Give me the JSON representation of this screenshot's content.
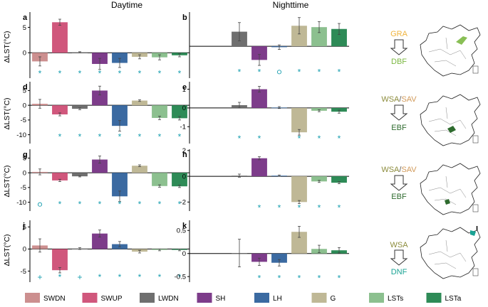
{
  "figure": {
    "column_titles": {
      "day": "Daytime",
      "night": "Nighttime"
    },
    "ylabel": "ΔLST(°C)",
    "colors": {
      "SWDN": "#cc8f8f",
      "SWUP": "#d0577c",
      "LWDN": "#6f6f6f",
      "SH": "#7d3c8a",
      "LH": "#3b6aa1",
      "G": "#bfb896",
      "LSTs": "#8cc08f",
      "LSTa": "#2e8b57"
    },
    "marker_color": "#1a9fb0",
    "axis_color": "#000000",
    "error_color": "#444444"
  },
  "legend": [
    {
      "key": "SWDN",
      "label": "SWDN"
    },
    {
      "key": "SWUP",
      "label": "SWUP"
    },
    {
      "key": "LWDN",
      "label": "LWDN"
    },
    {
      "key": "SH",
      "label": "SH"
    },
    {
      "key": "LH",
      "label": "LH"
    },
    {
      "key": "G",
      "label": "G"
    },
    {
      "key": "LSTs",
      "label": "LSTs"
    },
    {
      "key": "LSTa",
      "label": "LSTa"
    }
  ],
  "covers": [
    {
      "panel": "c",
      "from": [
        {
          "text": "GRA",
          "color": "#f0b43c"
        }
      ],
      "to": {
        "text": "DBF",
        "color": "#7cb842"
      }
    },
    {
      "panel": "f",
      "from": [
        {
          "text": "WSA",
          "color": "#8c8c3c"
        },
        {
          "text": "/",
          "color": "#555555"
        },
        {
          "text": "SAV",
          "color": "#d19a5a"
        }
      ],
      "to": {
        "text": "EBF",
        "color": "#2e6b2e"
      }
    },
    {
      "panel": "i",
      "from": [
        {
          "text": "WSA",
          "color": "#8c8c3c"
        },
        {
          "text": "/",
          "color": "#555555"
        },
        {
          "text": "SAV",
          "color": "#d19a5a"
        }
      ],
      "to": {
        "text": "EBF",
        "color": "#2e6b2e"
      }
    },
    {
      "panel": "l",
      "from": [
        {
          "text": "WSA",
          "color": "#8c8c3c"
        }
      ],
      "to": {
        "text": "DNF",
        "color": "#1aa394"
      }
    }
  ],
  "chart_data": [
    {
      "panel": "a",
      "column": "Daytime",
      "type": "bar",
      "ylabel": "ΔLST(°C)",
      "categories": [
        "SWDN",
        "SWUP",
        "LWDN",
        "SH",
        "LH",
        "G",
        "LSTs",
        "LSTa"
      ],
      "values": [
        -1.7,
        6.0,
        0.1,
        -2.2,
        -2.0,
        -0.8,
        -0.9,
        -0.5
      ],
      "errors": [
        0.9,
        0.6,
        0.1,
        1.1,
        0.9,
        0.4,
        0.5,
        0.3
      ],
      "ylim": [
        -5,
        8
      ],
      "yticks": [
        0,
        5
      ],
      "markers": [
        "*",
        "*",
        "*",
        "*",
        "*",
        "*",
        "*",
        "*"
      ],
      "markers_at": -4.2
    },
    {
      "panel": "b",
      "column": "Nighttime",
      "type": "bar",
      "ylabel": "",
      "categories": [
        "SWDN",
        "SWUP",
        "LWDN",
        "SH",
        "LH",
        "G",
        "LSTs",
        "LSTa"
      ],
      "values": [
        0,
        0,
        0.32,
        -0.3,
        -0.02,
        0.45,
        0.42,
        0.38
      ],
      "errors": [
        0,
        0,
        0.2,
        0.12,
        0.05,
        0.18,
        0.12,
        0.12
      ],
      "ylim": [
        -0.7,
        0.75
      ],
      "yticks": [],
      "markers": [
        "",
        "",
        "*",
        "*",
        "o",
        "*",
        "*",
        "*"
      ],
      "markers_at": -0.58
    },
    {
      "panel": "d",
      "column": "Daytime",
      "type": "bar",
      "ylabel": "ΔLST(°C)",
      "categories": [
        "SWDN",
        "SWUP",
        "LWDN",
        "SH",
        "LH",
        "G",
        "LSTs",
        "LSTa"
      ],
      "values": [
        0.5,
        -3.1,
        -1.2,
        5.0,
        -7.0,
        1.6,
        -4.3,
        -4.4
      ],
      "errors": [
        1.5,
        0.5,
        0.3,
        1.5,
        1.8,
        0.3,
        0.6,
        0.6
      ],
      "ylim": [
        -13,
        8
      ],
      "yticks": [
        5,
        0,
        -5,
        -10
      ],
      "markers": [
        "",
        "*",
        "*",
        "*",
        "*",
        "*",
        "*",
        "*"
      ],
      "markers_at": -11
    },
    {
      "panel": "e",
      "column": "Nighttime",
      "type": "bar",
      "ylabel": "",
      "categories": [
        "SWDN",
        "SWUP",
        "LWDN",
        "SH",
        "LH",
        "G",
        "LSTs",
        "LSTa"
      ],
      "values": [
        0,
        0,
        0.15,
        1.0,
        0.02,
        -1.3,
        -0.15,
        -0.2
      ],
      "errors": [
        0,
        0,
        0.15,
        0.15,
        0.05,
        0.15,
        0.05,
        0.08
      ],
      "ylim": [
        -1.9,
        1.4
      ],
      "yticks": [
        1,
        0,
        -1
      ],
      "markers": [
        "",
        "",
        "*",
        "*",
        "",
        "*",
        "*",
        "*"
      ],
      "markers_at": -1.68
    },
    {
      "panel": "g",
      "column": "Daytime",
      "type": "bar",
      "ylabel": "ΔLST(°C)",
      "categories": [
        "SWDN",
        "SWUP",
        "LWDN",
        "SH",
        "LH",
        "G",
        "LSTs",
        "LSTa"
      ],
      "values": [
        0.3,
        -2.6,
        -1.2,
        4.5,
        -8.0,
        2.4,
        -4.5,
        -4.6
      ],
      "errors": [
        1.0,
        0.4,
        0.2,
        1.2,
        1.8,
        0.3,
        0.4,
        0.4
      ],
      "ylim": [
        -13,
        8
      ],
      "yticks": [
        5,
        0,
        -5,
        -10
      ],
      "markers": [
        "o",
        "*",
        "*",
        "*",
        "*",
        "*",
        "*",
        "*"
      ],
      "markers_at": -11
    },
    {
      "panel": "h",
      "column": "Nighttime",
      "type": "bar",
      "ylabel": "",
      "categories": [
        "SWDN",
        "SWUP",
        "LWDN",
        "SH",
        "LH",
        "G",
        "LSTs",
        "LSTa"
      ],
      "values": [
        0,
        0,
        0.05,
        1.4,
        0.05,
        -2.0,
        -0.4,
        -0.5
      ],
      "errors": [
        0,
        0,
        0.12,
        0.12,
        0.05,
        0.12,
        0.08,
        0.08
      ],
      "ylim": [
        -2.7,
        2.1
      ],
      "yticks": [
        2,
        0,
        -2
      ],
      "markers": [
        "",
        "",
        "",
        "*",
        "*",
        "*",
        "*",
        "*"
      ],
      "markers_at": -2.5
    },
    {
      "panel": "j",
      "column": "Daytime",
      "type": "bar",
      "ylabel": "ΔLST(°C)",
      "categories": [
        "SWDN",
        "SWUP",
        "LWDN",
        "SH",
        "LH",
        "G",
        "LSTs",
        "LSTa"
      ],
      "values": [
        0.8,
        -4.8,
        0.1,
        3.5,
        1.1,
        -0.6,
        -0.2,
        -0.2
      ],
      "errors": [
        1.5,
        0.6,
        0.2,
        0.8,
        0.6,
        0.3,
        0.2,
        0.2
      ],
      "ylim": [
        -7.5,
        6.5
      ],
      "yticks": [
        5,
        0,
        -5
      ],
      "markers": [
        "+",
        "*",
        "+",
        "*",
        "*",
        "*",
        "*",
        "*"
      ],
      "markers_at": -6.5
    },
    {
      "panel": "k",
      "column": "Nighttime",
      "type": "bar",
      "ylabel": "",
      "categories": [
        "SWDN",
        "SWUP",
        "LWDN",
        "SH",
        "LH",
        "G",
        "LSTs",
        "LSTa"
      ],
      "values": [
        0,
        0,
        0.01,
        -0.18,
        -0.2,
        0.47,
        0.1,
        0.07
      ],
      "errors": [
        0,
        0,
        0.3,
        0.08,
        0.07,
        0.12,
        0.08,
        0.06
      ],
      "ylim": [
        -0.62,
        0.72
      ],
      "yticks": [
        0.5,
        0,
        -0.5
      ],
      "markers": [
        "",
        "",
        "",
        "*",
        "*",
        "*",
        "*",
        "*"
      ],
      "markers_at": -0.55
    }
  ]
}
